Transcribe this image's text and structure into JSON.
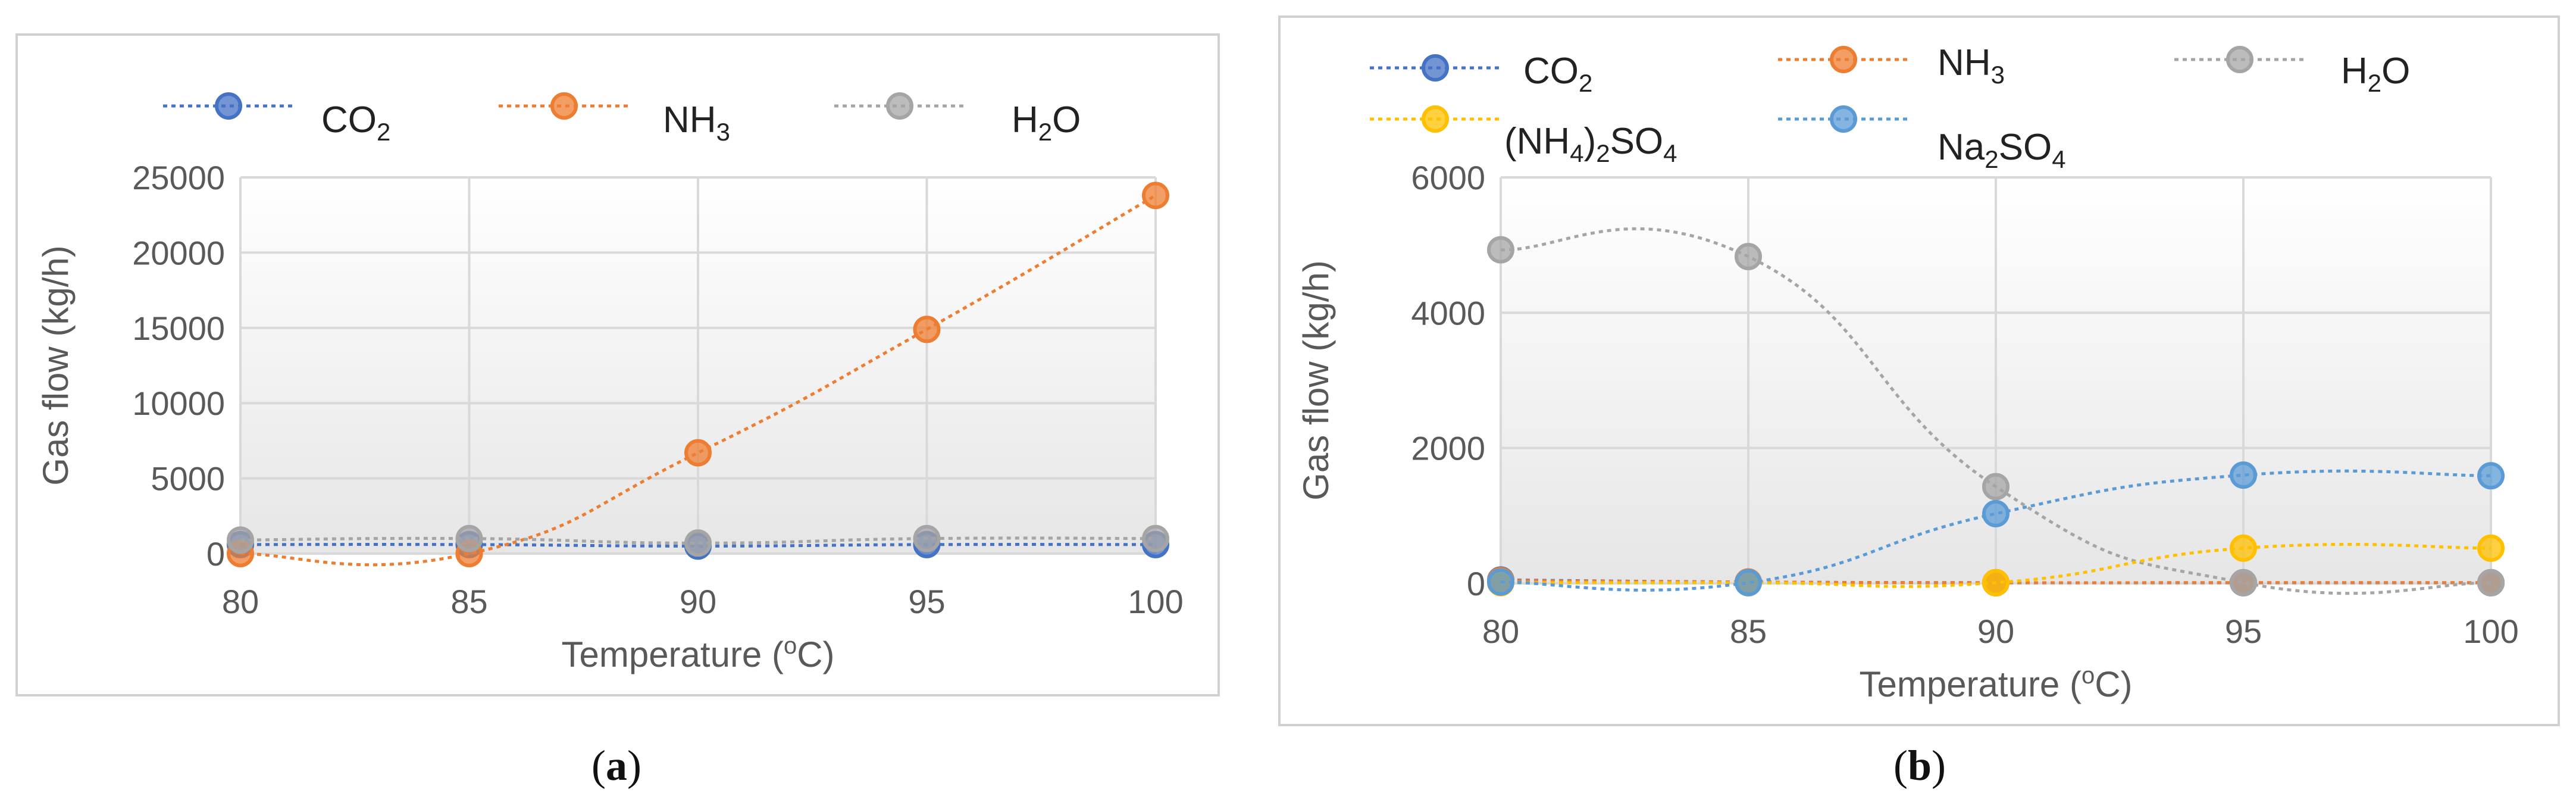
{
  "chart_data": [
    {
      "type": "line",
      "panel_label": "a",
      "x": [
        80,
        85,
        90,
        95,
        100
      ],
      "xlabel": "Temperature (",
      "xlabel_sup": "o",
      "xlabel_end": "C)",
      "ylabel": "Gas flow (kg/h)",
      "xlim": [
        80,
        100
      ],
      "ylim": [
        0,
        25000
      ],
      "yticks": [
        0,
        5000,
        10000,
        15000,
        20000,
        25000
      ],
      "xticks": [
        80,
        85,
        90,
        95,
        100
      ],
      "grid": true,
      "legend_position": "top",
      "series": [
        {
          "name": "CO",
          "name_sub": "2",
          "color": "#4472C4",
          "values": [
            600,
            600,
            500,
            600,
            600
          ]
        },
        {
          "name": "NH",
          "name_sub": "3",
          "color": "#ED7D31",
          "values": [
            0,
            0,
            6700,
            14900,
            23800
          ]
        },
        {
          "name": "H",
          "name_sub": "2",
          "name_end": "O",
          "color": "#A5A5A5",
          "values": [
            900,
            1000,
            700,
            1000,
            1000
          ]
        }
      ]
    },
    {
      "type": "line",
      "panel_label": "b",
      "x": [
        80,
        85,
        90,
        95,
        100
      ],
      "xlabel": "Temperature (",
      "xlabel_sup": "o",
      "xlabel_end": "C)",
      "ylabel": "Gas flow (kg/h)",
      "xlim": [
        80,
        100
      ],
      "ylim": [
        0,
        6000
      ],
      "yticks": [
        0,
        2000,
        4000,
        6000
      ],
      "xticks": [
        80,
        85,
        90,
        95,
        100
      ],
      "grid": true,
      "legend_position": "top",
      "series": [
        {
          "name": "CO",
          "name_sub": "2",
          "color": "#4472C4",
          "values": [
            50,
            20,
            10,
            10,
            10
          ]
        },
        {
          "name": "NH",
          "name_sub": "3",
          "color": "#ED7D31",
          "values": [
            40,
            20,
            10,
            10,
            10
          ]
        },
        {
          "name": "H",
          "name_sub": "2",
          "name_end": "O",
          "color": "#A5A5A5",
          "values": [
            4930,
            4830,
            1430,
            10,
            10
          ]
        },
        {
          "name": "(NH",
          "name_sub": "4",
          "name_mid": ")",
          "name_sub2": "2",
          "name_end": "SO",
          "name_sub3": "4",
          "color": "#FFC000",
          "values": [
            10,
            10,
            10,
            520,
            520
          ]
        },
        {
          "name": "Na",
          "name_sub": "2",
          "name_end": "SO",
          "name_sub3": "4",
          "color": "#5B9BD5",
          "values": [
            20,
            10,
            1030,
            1600,
            1590
          ]
        }
      ]
    }
  ]
}
